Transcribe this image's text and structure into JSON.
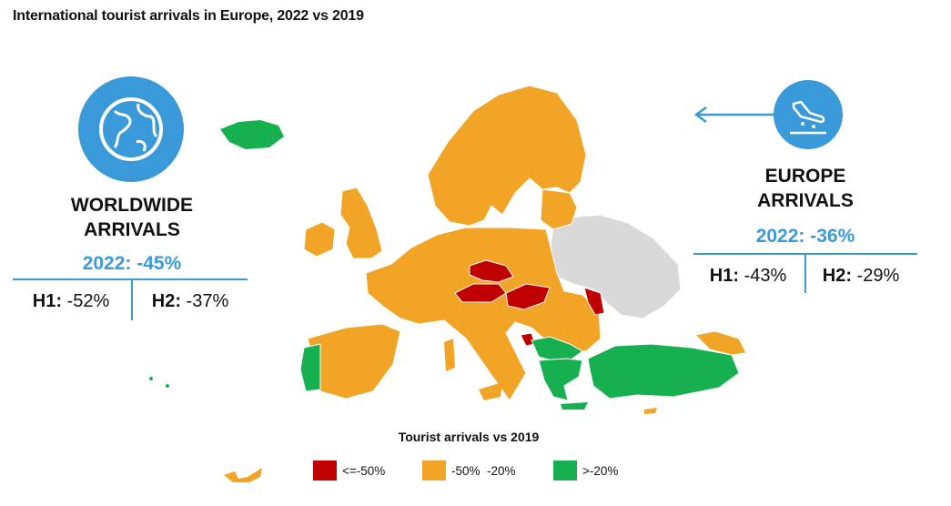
{
  "title": "International tourist arrivals in Europe, 2022 vs 2019",
  "worldwide": {
    "heading_line1": "WORLDWIDE",
    "heading_line2": "ARRIVALS",
    "total": "2022: -45%",
    "h1_label": "H1:",
    "h1_value": "-52%",
    "h2_label": "H2:",
    "h2_value": "-37%",
    "icon": "globe-icon"
  },
  "europe": {
    "heading_line1": "EUROPE",
    "heading_line2": "ARRIVALS",
    "total": "2022: -36%",
    "h1_label": "H1:",
    "h1_value": "-43%",
    "h2_label": "H2:",
    "h2_value": "-29%",
    "icon": "airplane-landing-icon",
    "arrow_icon": "arrow-left-icon"
  },
  "legend": {
    "title": "Tourist arrivals vs 2019",
    "items": [
      {
        "label": "<=-50%",
        "color": "#c00000"
      },
      {
        "label": "-50%  -20%",
        "color": "#f2a427"
      },
      {
        "label": ">-20%",
        "color": "#16b050"
      }
    ]
  },
  "colors": {
    "accent": "#3a9ad9",
    "no_data": "#d9d9d9",
    "red": "#c00000",
    "orange": "#f2a427",
    "green": "#16b050"
  }
}
